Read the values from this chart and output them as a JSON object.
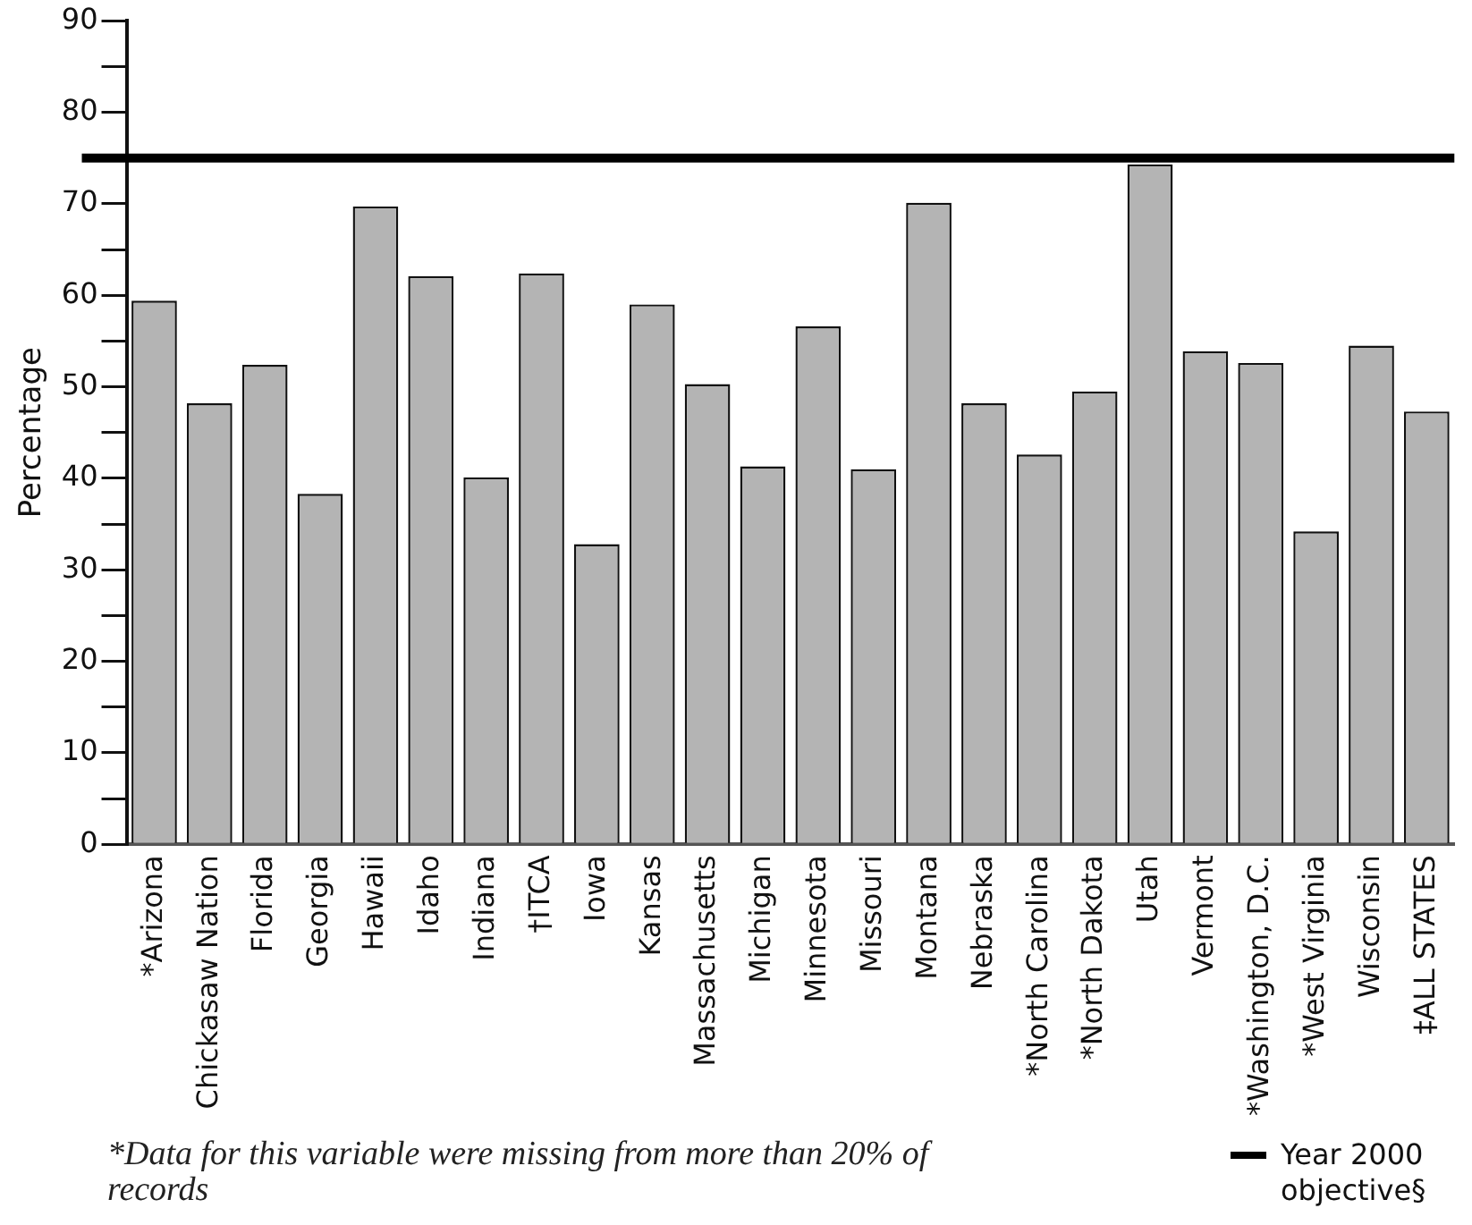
{
  "chart_data": {
    "type": "bar",
    "ylabel": "Percentage",
    "categories": [
      "*Arizona",
      "Chickasaw Nation",
      "Florida",
      "Georgia",
      "Hawaii",
      "Idaho",
      "Indiana",
      "†ITCA",
      "Iowa",
      "Kansas",
      "Massachusetts",
      "Michigan",
      "Minnesota",
      "Missouri",
      "Montana",
      "Nebraska",
      "*North Carolina",
      "*North Dakota",
      "Utah",
      "Vermont",
      "*Washington, D.C.",
      "*West Virginia",
      "Wisconsin",
      "‡ALL STATES"
    ],
    "values": [
      59.4,
      48.2,
      52.4,
      38.3,
      69.7,
      62.1,
      40.1,
      62.4,
      32.8,
      59.0,
      50.3,
      41.3,
      56.6,
      41.0,
      70.1,
      48.2,
      42.6,
      49.5,
      74.3,
      53.9,
      52.6,
      34.2,
      54.5,
      47.3
    ],
    "color": "#b4b4b4",
    "ylim": [
      0,
      90
    ],
    "yticks": [
      0,
      {
        "value": 5,
        "label": null
      },
      10,
      {
        "value": 15,
        "label": null
      },
      20,
      {
        "value": 25,
        "label": null
      },
      30,
      {
        "value": 35,
        "label": null
      },
      40,
      {
        "value": 45,
        "label": null
      },
      50,
      {
        "value": 55,
        "label": null
      },
      60,
      {
        "value": 65,
        "label": null
      },
      70,
      {
        "value": 75,
        "label": null
      },
      80,
      {
        "value": 85,
        "label": null
      },
      90
    ],
    "ref_lines": [
      {
        "axis": "y",
        "value": 75,
        "label": "Year 2000 objective§",
        "color": "#000000"
      }
    ],
    "annotations": [
      "*Data for this variable were missing from more than 20% of records"
    ],
    "grid": false,
    "legend": "bottom right"
  }
}
